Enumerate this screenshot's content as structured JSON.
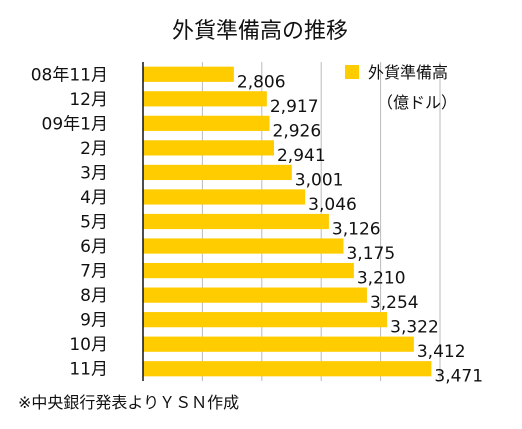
{
  "chart_data": {
    "type": "bar",
    "orientation": "horizontal",
    "title": "外貨準備高の推移",
    "categories": [
      "08年11月",
      "12月",
      "09年1月",
      "2月",
      "3月",
      "4月",
      "5月",
      "6月",
      "7月",
      "8月",
      "9月",
      "10月",
      "11月"
    ],
    "value_labels": [
      "2,806",
      "2,917",
      "2,926",
      "2,941",
      "3,001",
      "3,046",
      "3,126",
      "3,175",
      "3,210",
      "3,254",
      "3,322",
      "3,412",
      "3,471"
    ],
    "series": [
      {
        "name": "外貨準備高",
        "values": [
          2806,
          2917,
          2926,
          2941,
          3001,
          3046,
          3126,
          3175,
          3210,
          3254,
          3322,
          3412,
          3471
        ]
      }
    ],
    "unit_label": "（億ドル）",
    "xlim": [
      2500,
      3500
    ],
    "grid": true,
    "legend_position": "top-right",
    "colors": {
      "bar": "#FFCC00",
      "grid": "#BBBBBB",
      "axis": "#111111"
    }
  },
  "source_note": "※中央銀行発表よりＹＳＮ作成"
}
